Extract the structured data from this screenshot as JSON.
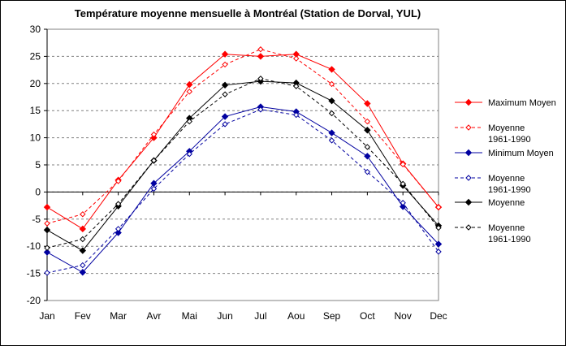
{
  "chart_data": {
    "type": "line",
    "title": "Température moyenne mensuelle à Montréal (Station de Dorval, YUL)",
    "xlabel": "",
    "ylabel": "",
    "ylim": [
      -20,
      30
    ],
    "yticks": [
      -20,
      -15,
      -10,
      -5,
      0,
      5,
      10,
      15,
      20,
      25,
      30
    ],
    "grid": "horizontal dashed",
    "legend_position": "right",
    "categories": [
      "Jan",
      "Fev",
      "Mar",
      "Avr",
      "Mai",
      "Jun",
      "Jul",
      "Aou",
      "Sep",
      "Oct",
      "Nov",
      "Dec"
    ],
    "series": [
      {
        "name": "Maximum Moyen",
        "color": "#ff0000",
        "line": "solid",
        "marker": "filled-diamond",
        "values": [
          -2.8,
          -6.8,
          2.2,
          10.0,
          19.8,
          25.4,
          25.0,
          25.4,
          22.6,
          16.3,
          5.2,
          -2.8
        ]
      },
      {
        "name": "Moyenne 1961-1990",
        "color": "#ff0000",
        "line": "dashed",
        "marker": "open-diamond",
        "values": [
          -5.8,
          -4.1,
          2.0,
          10.6,
          18.5,
          23.5,
          26.3,
          24.6,
          19.9,
          13.0,
          5.1,
          -2.8
        ]
      },
      {
        "name": "Minimum Moyen",
        "color": "#0000a0",
        "line": "solid",
        "marker": "filled-diamond",
        "values": [
          -11.1,
          -14.8,
          -7.5,
          1.6,
          7.5,
          13.9,
          15.7,
          14.8,
          10.9,
          6.6,
          -2.7,
          -9.6
        ]
      },
      {
        "name": "Moyenne 1961-1990",
        "color": "#0000a0",
        "line": "dashed",
        "marker": "open-diamond",
        "values": [
          -14.9,
          -13.5,
          -6.8,
          0.6,
          7.0,
          12.5,
          15.2,
          14.2,
          9.5,
          3.7,
          -2.0,
          -11.0
        ]
      },
      {
        "name": "Moyenne",
        "color": "#000000",
        "line": "solid",
        "marker": "filled-diamond",
        "values": [
          -7.0,
          -10.8,
          -2.6,
          5.8,
          13.6,
          19.7,
          20.4,
          20.1,
          16.8,
          11.4,
          1.2,
          -6.2
        ]
      },
      {
        "name": "Moyenne 1961-1990",
        "color": "#000000",
        "line": "dashed",
        "marker": "open-diamond",
        "values": [
          -10.3,
          -8.7,
          -2.2,
          5.8,
          13.0,
          18.0,
          20.9,
          19.5,
          14.5,
          8.3,
          1.5,
          -6.6
        ]
      }
    ],
    "legend": [
      {
        "line1": "Maximum Moyen",
        "line2": ""
      },
      {
        "line1": "Moyenne",
        "line2": "1961-1990"
      },
      {
        "line1": "Minimum Moyen",
        "line2": ""
      },
      {
        "line1": "Moyenne",
        "line2": "1961-1990"
      },
      {
        "line1": "Moyenne",
        "line2": ""
      },
      {
        "line1": "Moyenne",
        "line2": "1961-1990"
      }
    ]
  }
}
